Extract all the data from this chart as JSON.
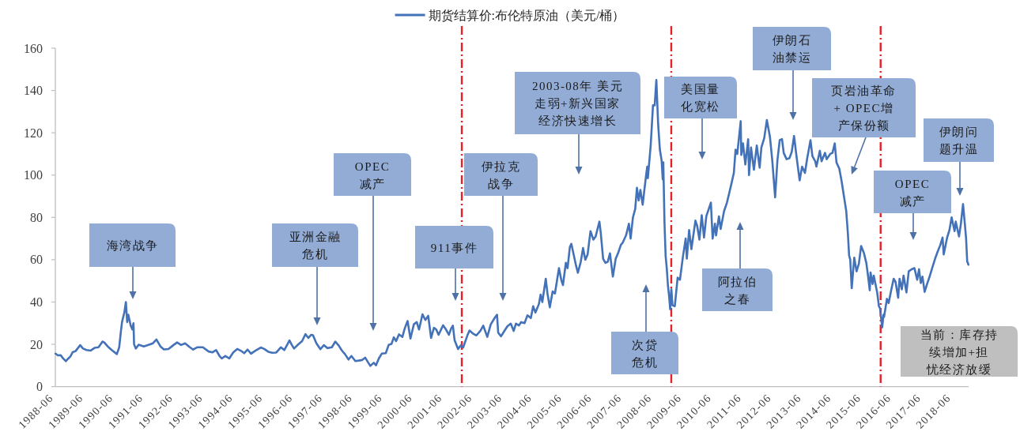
{
  "chart_data": {
    "type": "line",
    "xlim": [
      "1988-06-01",
      "2018-12-10"
    ],
    "xticks": [
      "1988-06",
      "1989-06",
      "1990-06",
      "1991-06",
      "1992-06",
      "1993-06",
      "1994-06",
      "1995-06",
      "1996-06",
      "1997-06",
      "1998-06",
      "1999-06",
      "2000-06",
      "2001-06",
      "2002-06",
      "2003-06",
      "2004-06",
      "2005-06",
      "2006-06",
      "2007-06",
      "2008-06",
      "2009-06",
      "2010-06",
      "2011-06",
      "2012-06",
      "2013-06",
      "2014-06",
      "2015-06",
      "2016-06",
      "2017-06",
      "2018-06"
    ],
    "ylim": [
      0,
      160
    ],
    "yticks": [
      0,
      20,
      40,
      60,
      80,
      100,
      120,
      140,
      160
    ],
    "legend": "top",
    "x": [
      "1988-06-03",
      "1988-07-01",
      "1988-08-05",
      "1988-09-02",
      "1988-10-07",
      "1988-11-04",
      "1988-12-02",
      "1988-12-30",
      "1989-02-03",
      "1989-03-31",
      "1989-05-05",
      "1989-06-16",
      "1989-08-04",
      "1989-09-22",
      "1989-11-10",
      "1989-12-29",
      "1990-01-19",
      "1990-03-02",
      "1990-04-20",
      "1990-06-22",
      "1990-07-20",
      "1990-08-10",
      "1990-08-24",
      "1990-09-21",
      "1990-10-10",
      "1990-10-26",
      "1990-11-09",
      "1990-12-07",
      "1990-12-28",
      "1991-01-11",
      "1991-01-18",
      "1991-02-08",
      "1991-03-15",
      "1991-05-17",
      "1991-07-19",
      "1991-09-06",
      "1991-10-18",
      "1991-12-06",
      "1992-01-17",
      "1992-03-13",
      "1992-05-08",
      "1992-06-26",
      "1992-08-14",
      "1992-10-02",
      "1992-11-20",
      "1993-01-08",
      "1993-02-26",
      "1993-05-07",
      "1993-07-16",
      "1993-09-03",
      "1993-10-15",
      "1993-11-26",
      "1993-12-24",
      "1994-02-04",
      "1994-03-25",
      "1994-05-13",
      "1994-07-01",
      "1994-08-12",
      "1994-09-23",
      "1994-11-04",
      "1994-12-16",
      "1995-02-03",
      "1995-04-14",
      "1995-05-26",
      "1995-07-14",
      "1995-09-01",
      "1995-10-20",
      "1995-12-15",
      "1996-01-26",
      "1996-03-29",
      "1996-04-26",
      "1996-05-24",
      "1996-07-05",
      "1996-08-30",
      "1996-10-11",
      "1996-11-15",
      "1996-12-20",
      "1997-01-10",
      "1997-02-21",
      "1997-04-11",
      "1997-05-23",
      "1997-07-04",
      "1997-08-29",
      "1997-10-10",
      "1997-11-21",
      "1997-12-26",
      "1998-02-06",
      "1998-03-20",
      "1998-04-24",
      "1998-06-12",
      "1998-07-24",
      "1998-09-04",
      "1998-10-09",
      "1998-11-20",
      "1998-12-11",
      "1999-01-22",
      "1999-02-19",
      "1999-03-26",
      "1999-04-30",
      "1999-06-18",
      "1999-07-23",
      "1999-08-27",
      "1999-09-24",
      "1999-10-22",
      "1999-11-26",
      "2000-01-07",
      "2000-02-04",
      "2000-03-10",
      "2000-04-14",
      "2000-05-26",
      "2000-06-30",
      "2000-07-28",
      "2000-09-08",
      "2000-10-13",
      "2000-11-17",
      "2000-12-22",
      "2001-01-26",
      "2001-02-23",
      "2001-03-23",
      "2001-05-18",
      "2001-06-22",
      "2001-07-27",
      "2001-08-24",
      "2001-09-14",
      "2001-10-05",
      "2001-11-16",
      "2001-12-21",
      "2002-01-18",
      "2002-03-15",
      "2002-04-05",
      "2002-05-24",
      "2002-06-28",
      "2002-08-16",
      "2002-09-20",
      "2002-11-08",
      "2002-12-20",
      "2003-02-07",
      "2003-03-07",
      "2003-03-21",
      "2003-04-25",
      "2003-05-30",
      "2003-07-11",
      "2003-08-22",
      "2003-09-26",
      "2003-10-24",
      "2003-11-28",
      "2003-12-26",
      "2004-02-06",
      "2004-03-12",
      "2004-04-23",
      "2004-05-21",
      "2004-06-18",
      "2004-07-30",
      "2004-08-20",
      "2004-09-10",
      "2004-10-22",
      "2004-11-12",
      "2004-12-10",
      "2005-01-14",
      "2005-02-11",
      "2005-04-01",
      "2005-04-29",
      "2005-05-20",
      "2005-06-24",
      "2005-07-15",
      "2005-08-12",
      "2005-08-30",
      "2005-09-30",
      "2005-10-28",
      "2005-11-18",
      "2005-12-23",
      "2006-01-20",
      "2006-02-17",
      "2006-03-17",
      "2006-04-21",
      "2006-05-26",
      "2006-06-23",
      "2006-08-08",
      "2006-08-25",
      "2006-09-22",
      "2006-10-20",
      "2006-11-17",
      "2006-12-15",
      "2007-01-19",
      "2007-02-23",
      "2007-03-23",
      "2007-04-27",
      "2007-05-18",
      "2007-06-29",
      "2007-08-03",
      "2007-08-24",
      "2007-09-21",
      "2007-10-19",
      "2007-11-09",
      "2007-11-30",
      "2007-12-21",
      "2008-01-18",
      "2008-02-29",
      "2008-03-14",
      "2008-03-21",
      "2008-04-25",
      "2008-05-23",
      "2008-06-13",
      "2008-07-03",
      "2008-07-25",
      "2008-08-15",
      "2008-09-05",
      "2008-09-19",
      "2008-09-26",
      "2008-10-10",
      "2008-10-24",
      "2008-11-07",
      "2008-11-21",
      "2008-12-05",
      "2008-12-19",
      "2009-01-02",
      "2009-01-16",
      "2009-02-13",
      "2009-03-20",
      "2009-04-17",
      "2009-05-22",
      "2009-06-26",
      "2009-07-10",
      "2009-08-07",
      "2009-09-04",
      "2009-10-23",
      "2009-11-13",
      "2009-12-11",
      "2010-01-08",
      "2010-02-05",
      "2010-03-05",
      "2010-04-30",
      "2010-05-21",
      "2010-06-18",
      "2010-07-02",
      "2010-08-06",
      "2010-08-27",
      "2010-10-08",
      "2010-11-12",
      "2010-12-31",
      "2011-02-04",
      "2011-02-25",
      "2011-03-18",
      "2011-04-29",
      "2011-05-06",
      "2011-05-27",
      "2011-06-24",
      "2011-07-29",
      "2011-08-08",
      "2011-09-02",
      "2011-10-07",
      "2011-11-11",
      "2011-12-16",
      "2012-01-06",
      "2012-02-10",
      "2012-03-13",
      "2012-04-20",
      "2012-05-18",
      "2012-06-22",
      "2012-07-20",
      "2012-08-17",
      "2012-09-14",
      "2012-10-05",
      "2012-11-09",
      "2012-12-14",
      "2013-01-11",
      "2013-02-08",
      "2013-03-08",
      "2013-04-17",
      "2013-05-17",
      "2013-06-21",
      "2013-07-19",
      "2013-08-28",
      "2013-09-20",
      "2013-10-25",
      "2013-11-08",
      "2013-12-20",
      "2014-01-10",
      "2014-02-21",
      "2014-03-14",
      "2014-04-25",
      "2014-05-23",
      "2014-06-20",
      "2014-07-11",
      "2014-08-15",
      "2014-09-12",
      "2014-10-10",
      "2014-11-07",
      "2014-11-28",
      "2014-12-12",
      "2014-12-26",
      "2015-01-13",
      "2015-02-13",
      "2015-03-13",
      "2015-04-10",
      "2015-05-08",
      "2015-06-12",
      "2015-07-10",
      "2015-07-31",
      "2015-08-21",
      "2015-08-31",
      "2015-09-25",
      "2015-10-09",
      "2015-11-20",
      "2015-12-11",
      "2015-12-25",
      "2016-01-20",
      "2016-02-05",
      "2016-02-12",
      "2016-03-18",
      "2016-04-08",
      "2016-05-06",
      "2016-06-08",
      "2016-07-01",
      "2016-08-02",
      "2016-08-19",
      "2016-09-16",
      "2016-10-07",
      "2016-11-11",
      "2016-12-09",
      "2017-01-13",
      "2017-02-17",
      "2017-03-22",
      "2017-04-14",
      "2017-05-05",
      "2017-05-26",
      "2017-06-21",
      "2017-07-21",
      "2017-08-25",
      "2017-09-29",
      "2017-10-27",
      "2017-11-24",
      "2017-12-29",
      "2018-01-26",
      "2018-02-09",
      "2018-03-23",
      "2018-04-20",
      "2018-05-17",
      "2018-06-08",
      "2018-06-22",
      "2018-07-06",
      "2018-08-15",
      "2018-09-07",
      "2018-10-03",
      "2018-10-26",
      "2018-11-09",
      "2018-11-23",
      "2018-11-30",
      "2018-12-07"
    ],
    "series": [
      {
        "name": "期货结算价:布伦特原油（美元/桶）",
        "color": "#4472b8",
        "values": [
          15.6,
          14.8,
          14.9,
          13.4,
          12.0,
          13.2,
          14.3,
          16.3,
          16.8,
          19.6,
          18.0,
          17.3,
          17.0,
          18.3,
          18.6,
          21.3,
          20.9,
          19.0,
          17.3,
          15.4,
          18.5,
          26.0,
          30.5,
          35.0,
          40.0,
          30.5,
          34.0,
          29.0,
          27.0,
          30.0,
          20.0,
          18.0,
          19.8,
          19.0,
          19.8,
          20.5,
          22.3,
          19.0,
          17.6,
          17.8,
          19.5,
          20.9,
          19.7,
          20.5,
          18.9,
          17.5,
          18.6,
          18.6,
          16.6,
          16.2,
          17.3,
          14.5,
          13.3,
          14.5,
          13.3,
          16.2,
          17.8,
          17.0,
          15.8,
          17.5,
          15.6,
          16.9,
          18.5,
          17.8,
          16.5,
          16.0,
          16.1,
          18.6,
          17.3,
          21.8,
          19.8,
          18.0,
          19.6,
          21.5,
          24.8,
          23.0,
          24.5,
          24.3,
          20.5,
          17.7,
          19.6,
          18.2,
          18.6,
          21.3,
          19.4,
          17.2,
          15.3,
          12.8,
          14.5,
          12.1,
          12.3,
          12.6,
          13.7,
          11.1,
          9.8,
          11.3,
          10.1,
          13.4,
          15.6,
          15.8,
          19.7,
          20.2,
          23.3,
          21.5,
          24.7,
          23.5,
          27.5,
          31.0,
          22.7,
          29.5,
          30.5,
          27.0,
          34.2,
          31.5,
          33.5,
          23.0,
          27.8,
          27.0,
          24.5,
          29.0,
          27.0,
          24.5,
          27.5,
          28.8,
          22.0,
          17.8,
          19.5,
          18.5,
          24.7,
          26.5,
          24.9,
          24.2,
          26.4,
          28.8,
          23.5,
          29.4,
          32.5,
          34.0,
          25.5,
          23.8,
          26.0,
          28.5,
          29.8,
          26.3,
          29.8,
          28.9,
          30.5,
          30.0,
          33.7,
          32.4,
          38.0,
          35.0,
          39.0,
          43.5,
          40.0,
          51.0,
          44.0,
          37.5,
          45.0,
          44.0,
          56.0,
          50.5,
          48.0,
          58.5,
          56.0,
          66.0,
          67.5,
          62.0,
          57.0,
          53.8,
          59.0,
          65.5,
          60.0,
          62.5,
          73.5,
          69.5,
          71.0,
          78.0,
          72.5,
          60.5,
          58.5,
          59.0,
          63.0,
          52.0,
          60.5,
          63.0,
          67.0,
          68.0,
          71.5,
          77.0,
          70.0,
          80.0,
          84.0,
          94.0,
          88.0,
          93.0,
          86.0,
          100.0,
          104.0,
          98.5,
          114.0,
          133.0,
          133.0,
          145.0,
          124.0,
          112.0,
          107.0,
          98.0,
          106.0,
          78.0,
          62.0,
          56.0,
          48.0,
          43.0,
          36.6,
          46.0,
          38.5,
          38.0,
          51.5,
          50.5,
          61.0,
          70.0,
          60.5,
          74.0,
          65.0,
          78.5,
          76.0,
          69.5,
          81.0,
          70.5,
          80.5,
          87.0,
          70.0,
          77.0,
          71.5,
          80.5,
          74.5,
          83.0,
          87.0,
          95.0,
          101.0,
          112.0,
          110.0,
          125.5,
          109.5,
          115.0,
          105.0,
          117.0,
          100.0,
          113.0,
          102.5,
          114.0,
          103.5,
          113.0,
          117.5,
          126.0,
          118.0,
          107.0,
          89.5,
          107.0,
          116.5,
          117.0,
          110.5,
          107.5,
          108.0,
          111.0,
          118.5,
          109.5,
          97.5,
          104.0,
          101.0,
          108.0,
          116.5,
          109.0,
          106.5,
          104.0,
          111.5,
          106.5,
          110.5,
          107.5,
          110.0,
          110.5,
          115.0,
          106.0,
          103.0,
          97.0,
          90.0,
          83.0,
          72.0,
          62.0,
          60.0,
          46.5,
          61.0,
          54.5,
          58.0,
          66.5,
          63.0,
          58.5,
          52.5,
          45.5,
          54.0,
          48.5,
          52.5,
          44.5,
          38.0,
          37.0,
          28.0,
          34.0,
          33.0,
          41.5,
          39.5,
          45.0,
          51.0,
          49.5,
          42.0,
          51.0,
          46.0,
          52.5,
          44.5,
          54.5,
          55.5,
          56.0,
          50.5,
          55.5,
          49.0,
          52.0,
          44.8,
          48.5,
          52.5,
          57.0,
          60.5,
          63.5,
          66.9,
          70.5,
          62.5,
          70.5,
          74.0,
          80.0,
          76.0,
          73.5,
          78.0,
          71.0,
          77.0,
          86.3,
          76.5,
          70.2,
          59.0,
          58.7,
          57.6
        ]
      }
    ],
    "ref_lines": [
      {
        "axis": "x",
        "value": "2002-01",
        "color": "#e8202a",
        "line_style": "dashed"
      },
      {
        "axis": "x",
        "value": "2009-01",
        "color": "#e8202a",
        "line_style": "dashed"
      },
      {
        "axis": "x",
        "value": "2016-01",
        "color": "#e8202a",
        "line_style": "dashed"
      }
    ],
    "annotations": [
      "海湾战争",
      "亚洲金融危机",
      "OPEC减产",
      "911事件",
      "伊拉克战争",
      "2003-08年 美元走弱+新兴国家经济快速增长",
      "次贷危机",
      "美国量化宽松",
      "阿拉伯之春",
      "伊朗石油禁运",
      "页岩油革命+ OPEC增产保份额",
      "OPEC减产",
      "伊朗问题升温",
      "当前：库存持续增加+担忧经济放缓"
    ]
  }
}
